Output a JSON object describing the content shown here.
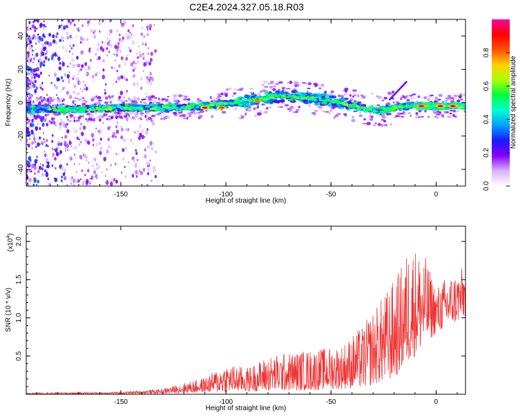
{
  "title": "C2E4.2024.327.05.18.R03",
  "chart_data": [
    {
      "type": "heatmap",
      "xlabel": "Height of straight line (km)",
      "ylabel": "Frequency (Hz)",
      "xlim": [
        -195,
        14
      ],
      "ylim": [
        -50,
        50
      ],
      "xticks": [
        -150,
        -100,
        -50,
        0
      ],
      "yticks": [
        -40,
        -20,
        0,
        20,
        40
      ],
      "colorbar": {
        "label": "Normalized spectral amplitude",
        "ticks": [
          "0.0",
          "0.2",
          "0.4",
          "0.6",
          "0.8"
        ],
        "range": [
          0,
          1
        ],
        "colors": [
          "#ffffff",
          "#d9b3ff",
          "#8800ff",
          "#1a1aff",
          "#00a0ff",
          "#00ffd0",
          "#00ff40",
          "#aaff00",
          "#ffd000",
          "#ff5000",
          "#ff0000",
          "#ff00a0"
        ]
      },
      "ridge": [
        {
          "x": -195,
          "y": -4
        },
        {
          "x": -170,
          "y": -4
        },
        {
          "x": -150,
          "y": -3
        },
        {
          "x": -130,
          "y": -3
        },
        {
          "x": -110,
          "y": -2
        },
        {
          "x": -95,
          "y": 0
        },
        {
          "x": -80,
          "y": 3
        },
        {
          "x": -70,
          "y": 4
        },
        {
          "x": -55,
          "y": 2
        },
        {
          "x": -45,
          "y": 0
        },
        {
          "x": -35,
          "y": -3
        },
        {
          "x": -27,
          "y": -5
        },
        {
          "x": -20,
          "y": -3
        },
        {
          "x": -13,
          "y": -2
        },
        {
          "x": 0,
          "y": -2
        },
        {
          "x": 14,
          "y": -2
        }
      ],
      "hotspots": [
        {
          "x": -110,
          "y": -3,
          "amp": 0.9
        },
        {
          "x": -102,
          "y": -3,
          "amp": 0.85
        },
        {
          "x": -85,
          "y": 1,
          "amp": 0.8
        },
        {
          "x": -7,
          "y": -2,
          "amp": 1.0
        },
        {
          "x": 2,
          "y": -2,
          "amp": 0.95
        },
        {
          "x": 8,
          "y": -2,
          "amp": 0.9
        }
      ]
    },
    {
      "type": "line",
      "xlabel": "Height of straight line (km)",
      "ylabel": "SNR (10 * v/v)",
      "exponent_label": "(x10",
      "exponent": "4",
      "xlim": [
        -195,
        14
      ],
      "ylim": [
        0,
        22000
      ],
      "xticks": [
        -150,
        -100,
        -50,
        0
      ],
      "yticks": [
        5000,
        10000,
        15000,
        20000
      ],
      "ytick_labels": [
        "0.5",
        "1.0",
        "1.5",
        "2.0"
      ],
      "color": "#ee3333",
      "envelope": [
        {
          "x": -195,
          "y": 200
        },
        {
          "x": -150,
          "y": 300
        },
        {
          "x": -130,
          "y": 700
        },
        {
          "x": -120,
          "y": 1500
        },
        {
          "x": -110,
          "y": 2200
        },
        {
          "x": -100,
          "y": 4000
        },
        {
          "x": -90,
          "y": 3500
        },
        {
          "x": -80,
          "y": 5000
        },
        {
          "x": -70,
          "y": 5500
        },
        {
          "x": -55,
          "y": 6000
        },
        {
          "x": -45,
          "y": 6500
        },
        {
          "x": -35,
          "y": 9000
        },
        {
          "x": -25,
          "y": 13000
        },
        {
          "x": -18,
          "y": 16000
        },
        {
          "x": -12,
          "y": 20000
        },
        {
          "x": -5,
          "y": 18000
        },
        {
          "x": 0,
          "y": 14000
        },
        {
          "x": 5,
          "y": 15500
        },
        {
          "x": 10,
          "y": 16000
        },
        {
          "x": 14,
          "y": 17000
        }
      ],
      "floor": [
        {
          "x": -195,
          "y": 0
        },
        {
          "x": -130,
          "y": 100
        },
        {
          "x": -100,
          "y": 300
        },
        {
          "x": -60,
          "y": 500
        },
        {
          "x": -35,
          "y": 800
        },
        {
          "x": -20,
          "y": 2000
        },
        {
          "x": -10,
          "y": 5000
        },
        {
          "x": 0,
          "y": 8000
        },
        {
          "x": 14,
          "y": 10000
        }
      ]
    }
  ]
}
